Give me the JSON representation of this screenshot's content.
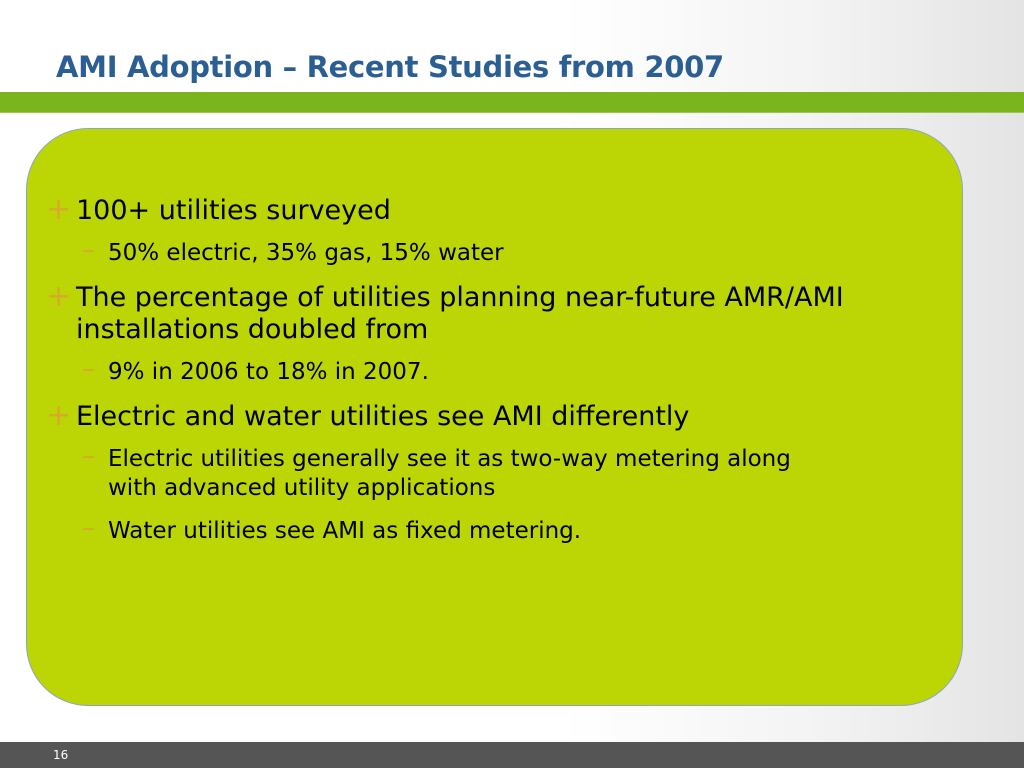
{
  "slide": {
    "title": "AMI Adoption – Recent Studies from 2007",
    "page_number": "16",
    "colors": {
      "title_text": "#2b5e93",
      "accent_bar": "#7ab51d",
      "content_box": "#bcd505",
      "bullet_marker": "#d7aa2a",
      "footer": "#555555"
    }
  },
  "bullets": [
    {
      "marker": "+",
      "text": "100+ utilities surveyed",
      "sub": [
        {
          "marker": "–",
          "text": "50% electric, 35% gas, 15% water"
        }
      ]
    },
    {
      "marker": "+",
      "text": "The percentage of utilities planning near-future AMR/AMI installations doubled from",
      "sub": [
        {
          "marker": "–",
          "text": "9% in 2006 to 18% in 2007."
        }
      ]
    },
    {
      "marker": "+",
      "text": "Electric and water utilities see AMI differently",
      "sub": [
        {
          "marker": "–",
          "text": "Electric utilities generally see it as two-way metering along with advanced utility applications"
        },
        {
          "marker": "–",
          "text": "Water utilities see AMI as fixed metering."
        }
      ]
    }
  ]
}
